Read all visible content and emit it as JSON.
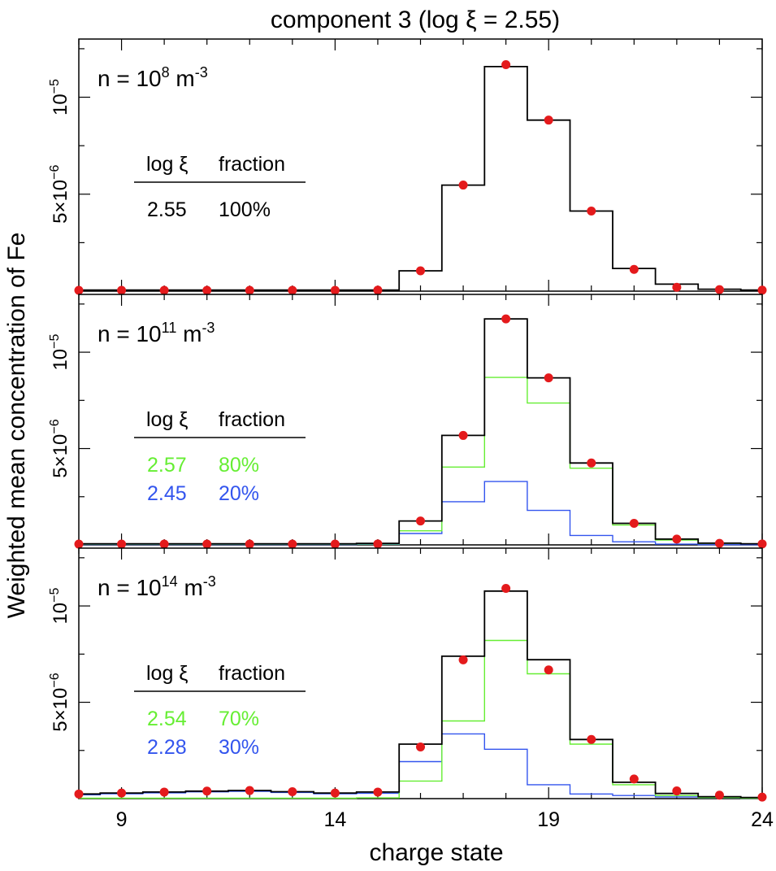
{
  "figure": {
    "title": "component 3 (log ξ = 2.55)",
    "ylabel": "Weighted mean concentration of Fe",
    "xlabel": "charge state",
    "x_ticks": [
      "9",
      "14",
      "19",
      "24"
    ]
  },
  "colors": {
    "total": "#000000",
    "points": "#e41a1c",
    "green": "#66ee33",
    "blue": "#3355ee"
  },
  "chart_data": [
    {
      "type": "line",
      "density_label": {
        "base": "n = 10",
        "exp": "8",
        "unit": " m",
        "unit_exp": "-3"
      },
      "y_ticks": [
        {
          "value": 1e-05,
          "base": "10",
          "exp": "−5"
        },
        {
          "value": 5e-06,
          "base": "5×10",
          "exp": "−6"
        }
      ],
      "xlim": [
        8,
        24
      ],
      "ylim": [
        0,
        1.3e-05
      ],
      "legend": {
        "header": [
          "log ξ",
          "fraction"
        ],
        "rows": [
          {
            "logxi": "2.55",
            "fraction": "100%",
            "color": "total"
          }
        ]
      },
      "x": [
        8,
        9,
        10,
        11,
        12,
        13,
        14,
        15,
        16,
        17,
        18,
        19,
        20,
        21,
        22,
        23,
        24
      ],
      "series": [
        {
          "color": "total",
          "steps": [
            6e-08,
            6e-08,
            6e-08,
            6e-08,
            6e-08,
            6e-08,
            6e-08,
            6e-08,
            1.05e-06,
            5.47e-06,
            1.158e-05,
            8.82e-06,
            4.13e-06,
            1.17e-06,
            3.6e-07,
            1e-07,
            6e-08
          ]
        }
      ],
      "points": [
        4e-08,
        4e-08,
        4e-08,
        4e-08,
        4e-08,
        4e-08,
        4e-08,
        5e-08,
        1.05e-06,
        5.47e-06,
        1.168e-05,
        8.82e-06,
        4.13e-06,
        1.12e-06,
        2e-07,
        8e-08,
        5e-08
      ]
    },
    {
      "type": "line",
      "density_label": {
        "base": "n = 10",
        "exp": "11",
        "unit": " m",
        "unit_exp": "-3"
      },
      "y_ticks": [
        {
          "value": 1e-05,
          "base": "10",
          "exp": "−5"
        },
        {
          "value": 5e-06,
          "base": "5×10",
          "exp": "−6"
        }
      ],
      "xlim": [
        8,
        24
      ],
      "ylim": [
        0,
        1.3e-05
      ],
      "legend": {
        "header": [
          "log ξ",
          "fraction"
        ],
        "rows": [
          {
            "logxi": "2.57",
            "fraction": "80%",
            "color": "green"
          },
          {
            "logxi": "2.45",
            "fraction": "20%",
            "color": "blue"
          }
        ]
      },
      "x": [
        8,
        9,
        10,
        11,
        12,
        13,
        14,
        15,
        16,
        17,
        18,
        19,
        20,
        21,
        22,
        23,
        24
      ],
      "series": [
        {
          "color": "blue",
          "steps": [
            2e-08,
            2e-08,
            2e-08,
            2e-08,
            2e-08,
            2e-08,
            2e-08,
            3e-08,
            5.9e-07,
            2.24e-06,
            3.29e-06,
            1.79e-06,
            4.9e-07,
            1.6e-07,
            4e-08,
            1e-08,
            1e-08
          ]
        },
        {
          "color": "green",
          "steps": [
            4e-08,
            4e-08,
            4e-08,
            4e-08,
            4e-08,
            4e-08,
            4e-08,
            5e-08,
            7.3e-07,
            4.04e-06,
            8.69e-06,
            7.36e-06,
            3.98e-06,
            1.03e-06,
            2.5e-07,
            8e-08,
            5e-08
          ]
        },
        {
          "color": "total",
          "steps": [
            6e-08,
            6e-08,
            6e-08,
            6e-08,
            6e-08,
            6e-08,
            6e-08,
            8e-08,
            1.24e-06,
            5.68e-06,
            1.173e-05,
            8.67e-06,
            4.25e-06,
            1.12e-06,
            3e-07,
            9e-08,
            6e-08
          ]
        }
      ],
      "points": [
        4e-08,
        4e-08,
        4e-08,
        4e-08,
        4e-08,
        4e-08,
        4e-08,
        5e-08,
        1.24e-06,
        5.68e-06,
        1.173e-05,
        8.67e-06,
        4.25e-06,
        1.12e-06,
        3e-07,
        8e-08,
        5e-08
      ]
    },
    {
      "type": "line",
      "density_label": {
        "base": "n = 10",
        "exp": "14",
        "unit": " m",
        "unit_exp": "-3"
      },
      "y_ticks": [
        {
          "value": 1e-05,
          "base": "10",
          "exp": "−5"
        },
        {
          "value": 5e-06,
          "base": "5×10",
          "exp": "−6"
        }
      ],
      "xlim": [
        8,
        24
      ],
      "ylim": [
        0,
        1.3e-05
      ],
      "legend": {
        "header": [
          "log ξ",
          "fraction"
        ],
        "rows": [
          {
            "logxi": "2.54",
            "fraction": "70%",
            "color": "green"
          },
          {
            "logxi": "2.28",
            "fraction": "30%",
            "color": "blue"
          }
        ]
      },
      "x": [
        8,
        9,
        10,
        11,
        12,
        13,
        14,
        15,
        16,
        17,
        18,
        19,
        20,
        21,
        22,
        23,
        24
      ],
      "series": [
        {
          "color": "blue",
          "steps": [
            2e-07,
            2.5e-07,
            3e-07,
            3.5e-07,
            3.8e-07,
            3.2e-07,
            2.5e-07,
            2.8e-07,
            1.92e-06,
            3.36e-06,
            2.56e-06,
            7.2e-07,
            2.4e-07,
            1.6e-07,
            9e-08,
            4e-08,
            2e-08
          ]
        },
        {
          "color": "green",
          "steps": [
            2e-08,
            2e-08,
            2e-08,
            2e-08,
            2e-08,
            2e-08,
            2e-08,
            4e-08,
            9.1e-07,
            4.03e-06,
            8.21e-06,
            6.48e-06,
            2.83e-06,
            7.2e-07,
            1.6e-07,
            5e-08,
            2e-08
          ]
        },
        {
          "color": "total",
          "steps": [
            2.4e-07,
            2.9e-07,
            3.4e-07,
            3.9e-07,
            4.2e-07,
            3.6e-07,
            2.9e-07,
            3.4e-07,
            2.83e-06,
            7.39e-06,
            1.077e-05,
            7.21e-06,
            3.07e-06,
            8.5e-07,
            2.7e-07,
            1e-07,
            6e-08
          ]
        }
      ],
      "points": [
        2.4e-07,
        2.9e-07,
        3.4e-07,
        3.9e-07,
        4.2e-07,
        3.6e-07,
        2.9e-07,
        3.4e-07,
        2.68e-06,
        7.2e-06,
        1.091e-05,
        6.68e-06,
        3.07e-06,
        1.02e-06,
        4e-07,
        1.8e-07,
        8e-08
      ]
    }
  ]
}
